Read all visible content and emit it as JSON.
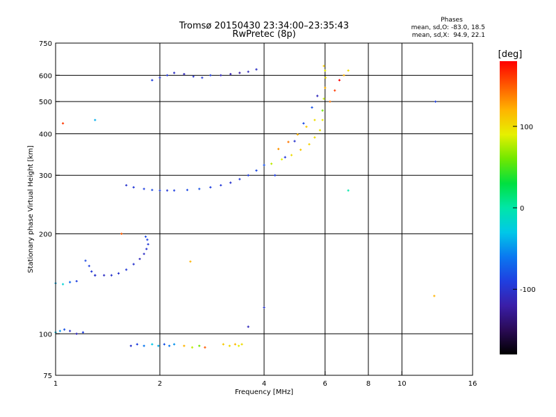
{
  "chart_data": {
    "type": "scatter",
    "title": "Tromsø 20150430 23:34:00–23:35:43",
    "subtitle": "RwPretec (8p)",
    "xlabel": "Frequency [MHz]",
    "ylabel": "Stationary phase Virtual Height [km]",
    "x_scale": "log",
    "y_scale": "log",
    "xlim": [
      1,
      16
    ],
    "ylim": [
      75,
      750
    ],
    "x_ticks": [
      1,
      2,
      4,
      6,
      8,
      10,
      16
    ],
    "y_ticks": [
      75,
      100,
      200,
      300,
      400,
      500,
      600,
      750
    ],
    "grid": true,
    "stats": {
      "heading": "Phases",
      "line_o": "mean, sd,O: -83.0, 18.5",
      "line_x": "mean, sd,X:  94.9, 22.1"
    },
    "colorbar": {
      "label": "[deg]",
      "range": [
        -180,
        180
      ],
      "ticks": [
        100,
        0,
        -100
      ],
      "colormap": [
        "#000000",
        "#2a0a55",
        "#3a1ea8",
        "#1f3fe0",
        "#0a78f0",
        "#00c8e8",
        "#00e6a8",
        "#00e040",
        "#70e800",
        "#e6f000",
        "#ffb400",
        "#ff5a00",
        "#ff0000"
      ]
    },
    "traces": [
      {
        "name": "",
        "x": [
          1.0,
          1.03,
          1.06,
          1.1,
          1.15,
          1.2
        ],
        "y": [
          101,
          102,
          103,
          102,
          100,
          101
        ],
        "phase": [
          -30,
          -50,
          -80,
          -100,
          -110,
          -90
        ]
      },
      {
        "name": "",
        "x": [
          1.65,
          1.72,
          1.8,
          1.9,
          1.98,
          2.06,
          2.13,
          2.2
        ],
        "y": [
          92,
          93,
          92,
          93,
          92,
          93,
          92,
          93
        ],
        "phase": [
          -100,
          -90,
          -60,
          -30,
          -40,
          -80,
          -60,
          -50
        ]
      },
      {
        "name": "",
        "x": [
          2.35,
          2.48,
          2.6,
          2.7
        ],
        "y": [
          92,
          91,
          92,
          91
        ],
        "phase": [
          120,
          80,
          60,
          150
        ]
      },
      {
        "name": "",
        "x": [
          3.05,
          3.18,
          3.3,
          3.38,
          3.45
        ],
        "y": [
          93,
          92,
          93,
          92,
          93
        ],
        "phase": [
          110,
          100,
          120,
          90,
          100
        ]
      },
      {
        "name": "",
        "x": [
          1.0,
          1.05,
          1.1,
          1.15
        ],
        "y": [
          142,
          141,
          143,
          144
        ],
        "phase": [
          -40,
          -20,
          -70,
          -90
        ]
      },
      {
        "name": "",
        "x": [
          1.3,
          1.38,
          1.45,
          1.52,
          1.6,
          1.68,
          1.75,
          1.8,
          1.83,
          1.85,
          1.84,
          1.82
        ],
        "y": [
          150,
          150,
          150,
          152,
          156,
          162,
          168,
          174,
          180,
          186,
          192,
          196
        ],
        "phase": [
          -110,
          -105,
          -100,
          -100,
          -95,
          -100,
          -110,
          -105,
          -100,
          -95,
          -90,
          -85
        ]
      },
      {
        "name": "",
        "x": [
          1.3,
          1.27,
          1.25,
          1.22
        ],
        "y": [
          150,
          154,
          160,
          166
        ],
        "phase": [
          -100,
          -95,
          -90,
          -85
        ]
      },
      {
        "name": "",
        "x": [
          1.6,
          1.68,
          1.8,
          1.9,
          2.0,
          2.1,
          2.2,
          2.4,
          2.6,
          2.8,
          3.0,
          3.2,
          3.4,
          3.6,
          3.8,
          4.0
        ],
        "y": [
          280,
          276,
          273,
          271,
          270,
          270,
          270,
          271,
          273,
          276,
          280,
          285,
          292,
          300,
          310,
          322
        ],
        "phase": [
          -100,
          -95,
          -90,
          -85,
          -90,
          -95,
          -90,
          -85,
          -80,
          -90,
          -95,
          -100,
          -95,
          -90,
          -85,
          -80
        ]
      },
      {
        "name": "",
        "x": [
          4.2,
          4.5,
          4.8,
          5.1,
          5.4,
          5.6,
          5.8,
          5.9
        ],
        "y": [
          325,
          335,
          345,
          358,
          372,
          390,
          410,
          440
        ],
        "phase": [
          80,
          90,
          100,
          110,
          105,
          100,
          95,
          90
        ]
      },
      {
        "name": "",
        "x": [
          4.4,
          4.7,
          5.0,
          5.3,
          5.6
        ],
        "y": [
          360,
          378,
          398,
          420,
          440
        ],
        "phase": [
          130,
          140,
          120,
          110,
          100
        ]
      },
      {
        "name": "",
        "x": [
          5.9,
          5.95,
          6.0,
          6.02,
          6.0,
          5.95
        ],
        "y": [
          470,
          510,
          550,
          590,
          620,
          640
        ],
        "phase": [
          60,
          80,
          120,
          100,
          90,
          110
        ]
      },
      {
        "name": "",
        "x": [
          4.3,
          4.6,
          4.9,
          5.2,
          5.5,
          5.7
        ],
        "y": [
          300,
          340,
          380,
          430,
          480,
          520
        ],
        "phase": [
          -90,
          -95,
          -100,
          -85,
          -80,
          -110
        ]
      },
      {
        "name": "",
        "x": [
          6.2,
          6.4,
          6.6,
          6.8,
          7.0
        ],
        "y": [
          500,
          540,
          580,
          600,
          620
        ],
        "phase": [
          140,
          160,
          180,
          120,
          100
        ]
      },
      {
        "name": "",
        "x": [
          1.9,
          2.0,
          2.1,
          2.2,
          2.35,
          2.5,
          2.65,
          2.8
        ],
        "y": [
          580,
          590,
          600,
          610,
          605,
          595,
          590,
          600
        ],
        "phase": [
          -90,
          -100,
          -95,
          -105,
          -110,
          -100,
          -95,
          -90
        ]
      },
      {
        "name": "",
        "x": [
          3.0,
          3.2,
          3.4,
          3.6,
          3.8
        ],
        "y": [
          600,
          605,
          610,
          615,
          625
        ],
        "phase": [
          -110,
          -115,
          -120,
          -110,
          -105
        ]
      },
      {
        "name": "",
        "x": [
          1.05,
          1.3,
          1.55,
          2.45,
          3.6,
          4.0,
          7.0,
          12.5,
          12.4
        ],
        "y": [
          430,
          440,
          200,
          165,
          105,
          120,
          270,
          500,
          130
        ],
        "phase": [
          160,
          -40,
          150,
          120,
          -110,
          -100,
          0,
          -90,
          120
        ]
      }
    ]
  }
}
